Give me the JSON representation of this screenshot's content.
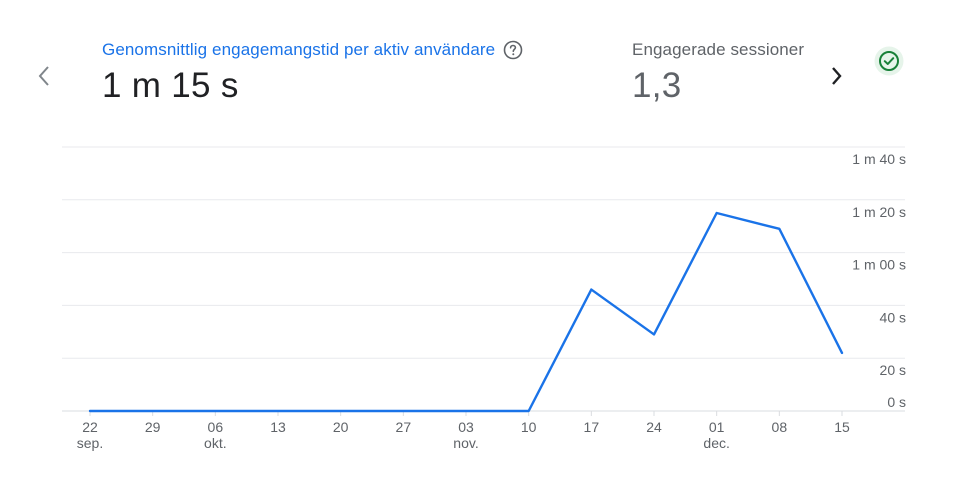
{
  "metrics": {
    "primary": {
      "label": "Genomsnittlig engagemangstid per aktiv användare",
      "value": "1 m 15 s"
    },
    "secondary": {
      "label": "Engagerade sessioner",
      "value": "1,3"
    }
  },
  "icons": {
    "prev": "chevron-left-icon",
    "next": "chevron-right-icon",
    "help": "help-circle-icon",
    "status": "check-circle-icon"
  },
  "colors": {
    "accent": "#1a73e8",
    "status": "#188038",
    "grid": "#e8eaed",
    "text_muted": "#5f6368"
  },
  "chart_data": {
    "type": "line",
    "x": [
      "22 sep.",
      "29",
      "06 okt.",
      "13",
      "20",
      "27",
      "03 nov.",
      "10",
      "17",
      "24",
      "01 dec.",
      "08",
      "15"
    ],
    "series": [
      {
        "values": [
          0,
          0,
          0,
          0,
          0,
          0,
          0,
          0,
          46,
          29,
          75,
          69,
          22
        ]
      }
    ],
    "ylim": [
      0,
      100
    ],
    "y_ticks": [
      {
        "value": 0,
        "label": "0 s"
      },
      {
        "value": 20,
        "label": "20 s"
      },
      {
        "value": 40,
        "label": "40 s"
      },
      {
        "value": 60,
        "label": "1 m 00 s"
      },
      {
        "value": 80,
        "label": "1 m 20 s"
      },
      {
        "value": 100,
        "label": "1 m 40 s"
      }
    ],
    "x_ticks": [
      {
        "top": "22",
        "bottom": "sep."
      },
      {
        "top": "29",
        "bottom": ""
      },
      {
        "top": "06",
        "bottom": "okt."
      },
      {
        "top": "13",
        "bottom": ""
      },
      {
        "top": "20",
        "bottom": ""
      },
      {
        "top": "27",
        "bottom": ""
      },
      {
        "top": "03",
        "bottom": "nov."
      },
      {
        "top": "10",
        "bottom": ""
      },
      {
        "top": "17",
        "bottom": ""
      },
      {
        "top": "24",
        "bottom": ""
      },
      {
        "top": "01",
        "bottom": "dec."
      },
      {
        "top": "08",
        "bottom": ""
      },
      {
        "top": "15",
        "bottom": ""
      }
    ],
    "grid": true,
    "legend": "none"
  }
}
